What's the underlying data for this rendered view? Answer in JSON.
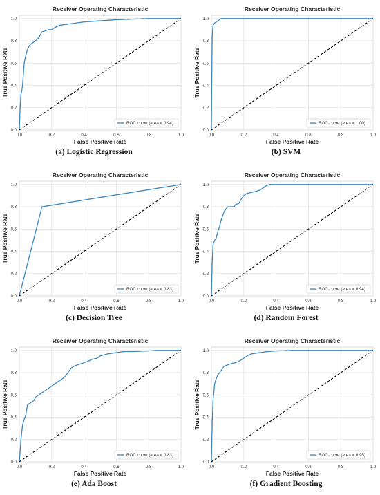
{
  "chart_data": [
    {
      "type": "line",
      "title": "Receiver Operating Characteristic",
      "xlabel": "False Positive Rate",
      "ylabel": "True Positive Rate",
      "xlim": [
        0,
        1
      ],
      "ylim": [
        0,
        1.03
      ],
      "ticks": [
        "0.0",
        "0.2",
        "0.4",
        "0.6",
        "0.8",
        "1.0"
      ],
      "grid": true,
      "legend_position": "lower-right",
      "caption_label": "(a)",
      "caption_text": "Logistic Regression",
      "series": [
        {
          "name": "ROC curve (area = 0.94)",
          "color": "#3a87c0",
          "x": [
            0,
            0.005,
            0.01,
            0.015,
            0.02,
            0.03,
            0.04,
            0.05,
            0.06,
            0.07,
            0.08,
            0.1,
            0.12,
            0.14,
            0.16,
            0.18,
            0.2,
            0.22,
            0.25,
            0.3,
            0.35,
            0.4,
            0.5,
            0.6,
            0.7,
            0.8,
            0.9,
            1.0
          ],
          "y": [
            0,
            0.2,
            0.32,
            0.35,
            0.4,
            0.6,
            0.67,
            0.72,
            0.75,
            0.77,
            0.78,
            0.8,
            0.83,
            0.88,
            0.89,
            0.9,
            0.9,
            0.92,
            0.94,
            0.95,
            0.96,
            0.97,
            0.98,
            0.99,
            0.995,
            1.0,
            1.0,
            1.0
          ]
        },
        {
          "name": "",
          "color": "#000000",
          "dashed": true,
          "x": [
            0,
            1
          ],
          "y": [
            0,
            1
          ]
        }
      ]
    },
    {
      "type": "line",
      "title": "Receiver Operating Characteristic",
      "xlabel": "False Positive Rate",
      "ylabel": "True Positive Rate",
      "xlim": [
        0,
        1
      ],
      "ylim": [
        0,
        1.03
      ],
      "ticks": [
        "0.0",
        "0.2",
        "0.4",
        "0.6",
        "0.8",
        "1.0"
      ],
      "grid": true,
      "legend_position": "lower-right",
      "caption_label": "(b)",
      "caption_text": "SVM",
      "series": [
        {
          "name": "ROC curve (area = 1.00)",
          "color": "#3a87c0",
          "x": [
            0,
            0.002,
            0.005,
            0.01,
            0.02,
            0.03,
            0.05,
            0.06,
            0.1,
            0.5,
            1.0
          ],
          "y": [
            0,
            0.4,
            0.85,
            0.94,
            0.96,
            0.97,
            0.99,
            1.0,
            1.0,
            1.0,
            1.0
          ]
        },
        {
          "name": "",
          "color": "#000000",
          "dashed": true,
          "x": [
            0,
            1
          ],
          "y": [
            0,
            1
          ]
        }
      ]
    },
    {
      "type": "line",
      "title": "Receiver Operating Characteristic",
      "xlabel": "False Positive Rate",
      "ylabel": "True Positive Rate",
      "xlim": [
        0,
        1
      ],
      "ylim": [
        0,
        1.03
      ],
      "ticks": [
        "0.0",
        "0.2",
        "0.4",
        "0.6",
        "0.8",
        "1.0"
      ],
      "grid": true,
      "legend_position": "lower-right",
      "caption_label": "(c)",
      "caption_text": "Decision Tree",
      "series": [
        {
          "name": "ROC curve (area = 0.83)",
          "color": "#3a87c0",
          "x": [
            0,
            0.14,
            1.0
          ],
          "y": [
            0,
            0.8,
            1.0
          ]
        },
        {
          "name": "",
          "color": "#000000",
          "dashed": true,
          "x": [
            0,
            1
          ],
          "y": [
            0,
            1
          ]
        }
      ]
    },
    {
      "type": "line",
      "title": "Receiver Operating Characteristic",
      "xlabel": "False Positive Rate",
      "ylabel": "True Positive Rate",
      "xlim": [
        0,
        1
      ],
      "ylim": [
        0,
        1.03
      ],
      "ticks": [
        "0.0",
        "0.2",
        "0.4",
        "0.6",
        "0.8",
        "1.0"
      ],
      "grid": true,
      "legend_position": "lower-right",
      "caption_label": "(d)",
      "caption_text": "Random Forest",
      "series": [
        {
          "name": "ROC curve (area = 0.94)",
          "color": "#3a87c0",
          "x": [
            0,
            0.005,
            0.01,
            0.02,
            0.03,
            0.04,
            0.05,
            0.06,
            0.07,
            0.08,
            0.09,
            0.1,
            0.12,
            0.14,
            0.15,
            0.17,
            0.18,
            0.2,
            0.22,
            0.25,
            0.28,
            0.3,
            0.32,
            0.34,
            0.36,
            0.4,
            0.5,
            0.6,
            0.8,
            1.0
          ],
          "y": [
            0,
            0.3,
            0.46,
            0.5,
            0.52,
            0.58,
            0.62,
            0.68,
            0.72,
            0.76,
            0.78,
            0.8,
            0.8,
            0.8,
            0.82,
            0.83,
            0.86,
            0.9,
            0.92,
            0.93,
            0.94,
            0.95,
            0.97,
            0.99,
            1.0,
            1.0,
            1.0,
            1.0,
            1.0,
            1.0
          ]
        },
        {
          "name": "",
          "color": "#000000",
          "dashed": true,
          "x": [
            0,
            1
          ],
          "y": [
            0,
            1
          ]
        }
      ]
    },
    {
      "type": "line",
      "title": "Receiver Operating Characteristic",
      "xlabel": "False Positive Rate",
      "ylabel": "True Positive Rate",
      "xlim": [
        0,
        1
      ],
      "ylim": [
        0,
        1.03
      ],
      "ticks": [
        "0.0",
        "0.2",
        "0.4",
        "0.6",
        "0.8",
        "1.0"
      ],
      "grid": true,
      "legend_position": "lower-right",
      "caption_label": "(e)",
      "caption_text": "Ada Boost",
      "series": [
        {
          "name": "ROC curve (area = 0.83)",
          "color": "#3a87c0",
          "x": [
            0,
            0.01,
            0.02,
            0.03,
            0.04,
            0.05,
            0.06,
            0.07,
            0.09,
            0.1,
            0.12,
            0.14,
            0.16,
            0.18,
            0.2,
            0.22,
            0.24,
            0.26,
            0.28,
            0.3,
            0.32,
            0.34,
            0.36,
            0.38,
            0.4,
            0.42,
            0.45,
            0.48,
            0.5,
            0.55,
            0.6,
            0.65,
            0.7,
            0.8,
            0.85,
            0.9,
            0.95,
            1.0
          ],
          "y": [
            0,
            0.2,
            0.33,
            0.38,
            0.42,
            0.51,
            0.52,
            0.53,
            0.55,
            0.58,
            0.6,
            0.62,
            0.64,
            0.66,
            0.68,
            0.7,
            0.72,
            0.74,
            0.76,
            0.8,
            0.84,
            0.86,
            0.87,
            0.88,
            0.89,
            0.9,
            0.92,
            0.93,
            0.95,
            0.97,
            0.98,
            0.99,
            0.99,
            0.995,
            1.0,
            1.0,
            1.0,
            1.0
          ]
        },
        {
          "name": "",
          "color": "#000000",
          "dashed": true,
          "x": [
            0,
            1
          ],
          "y": [
            0,
            1
          ]
        }
      ]
    },
    {
      "type": "line",
      "title": "Receiver Operating Characteristic",
      "xlabel": "False Positive Rate",
      "ylabel": "True Positive Rate",
      "xlim": [
        0,
        1
      ],
      "ylim": [
        0,
        1.03
      ],
      "ticks": [
        "0.0",
        "0.2",
        "0.4",
        "0.6",
        "0.8",
        "1.0"
      ],
      "grid": true,
      "legend_position": "lower-right",
      "caption_label": "(f)",
      "caption_text": "Gradient Boosting",
      "series": [
        {
          "name": "ROC curve (area = 0.95)",
          "color": "#3a87c0",
          "x": [
            0,
            0.005,
            0.01,
            0.02,
            0.03,
            0.04,
            0.05,
            0.06,
            0.07,
            0.08,
            0.1,
            0.12,
            0.15,
            0.18,
            0.2,
            0.22,
            0.25,
            0.3,
            0.35,
            0.4,
            0.5,
            0.6,
            0.7,
            0.8,
            0.9,
            1.0
          ],
          "y": [
            0,
            0.35,
            0.55,
            0.7,
            0.75,
            0.78,
            0.8,
            0.82,
            0.84,
            0.86,
            0.87,
            0.88,
            0.89,
            0.91,
            0.93,
            0.95,
            0.97,
            0.98,
            0.99,
            0.995,
            1.0,
            1.0,
            1.0,
            1.0,
            1.0,
            1.0
          ]
        },
        {
          "name": "",
          "color": "#000000",
          "dashed": true,
          "x": [
            0,
            1
          ],
          "y": [
            0,
            1
          ]
        }
      ]
    }
  ]
}
